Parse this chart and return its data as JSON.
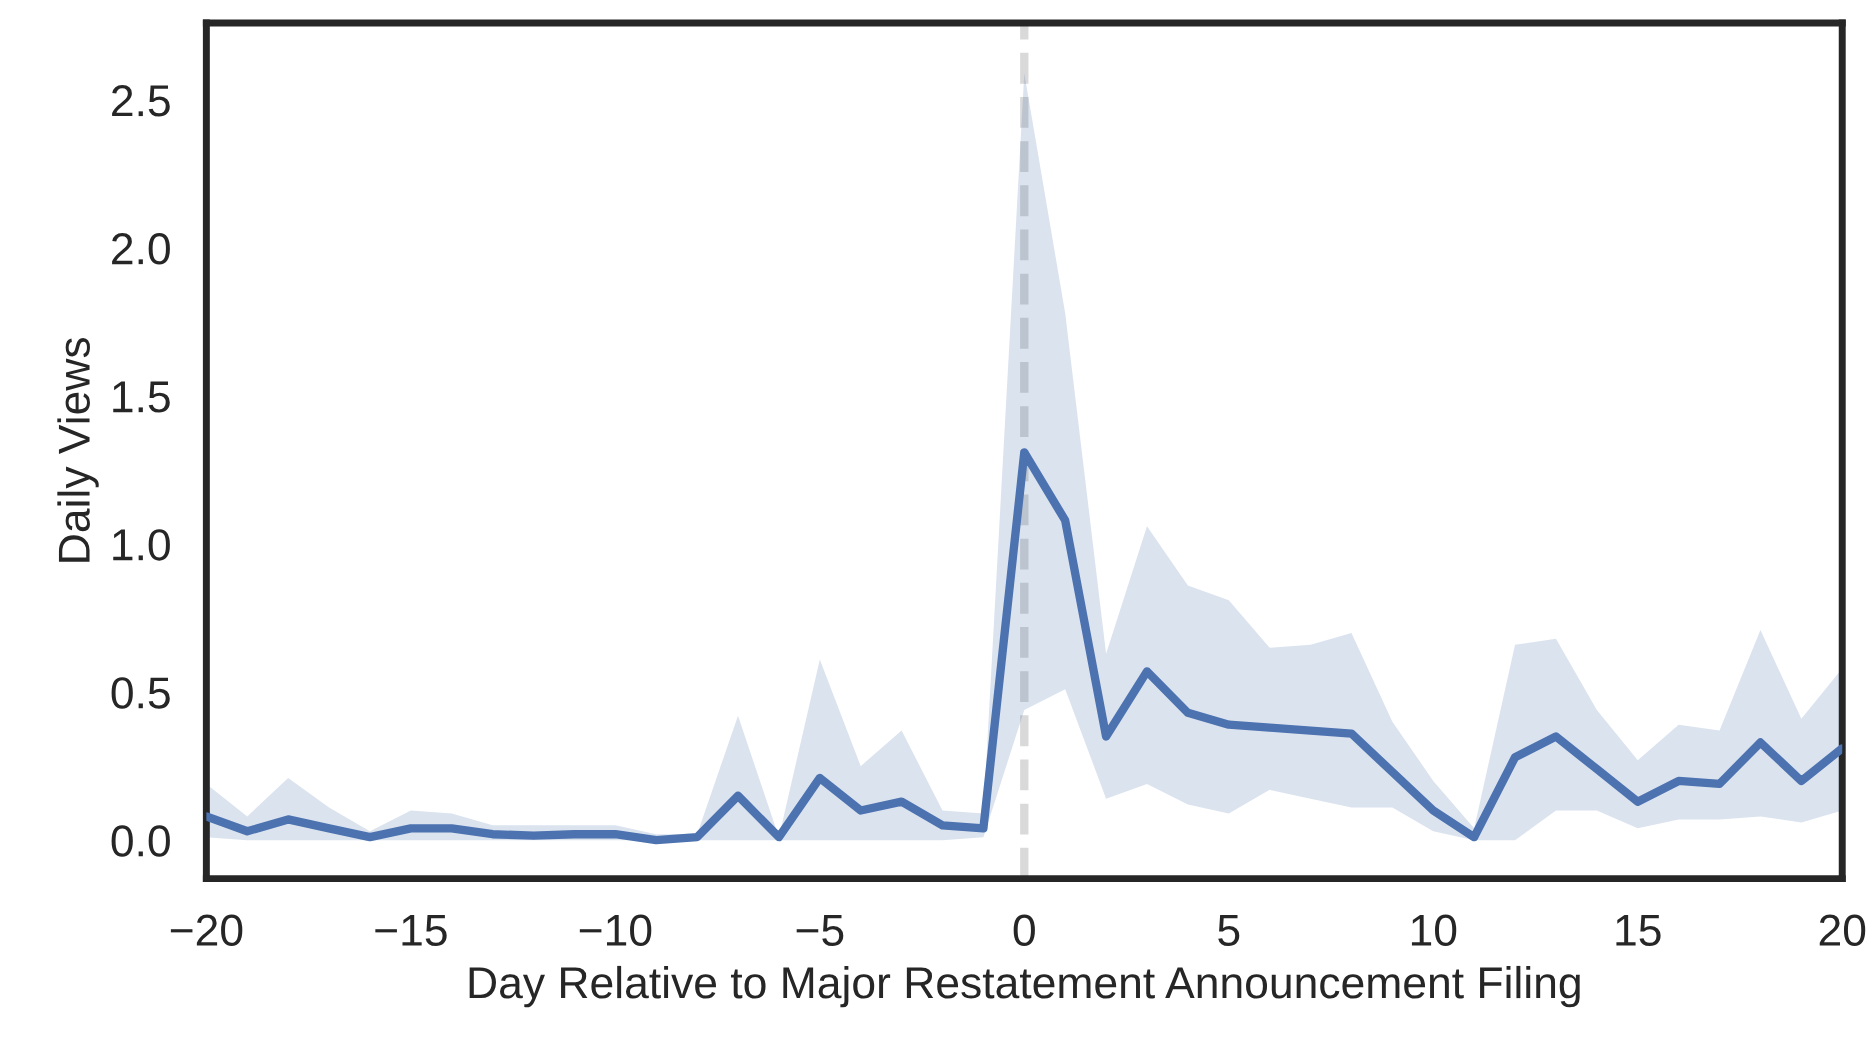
{
  "chart_data": {
    "type": "line",
    "xlabel": "Day Relative to Major Restatement Announcement Filing",
    "ylabel": "Daily Views",
    "x": [
      -20,
      -19,
      -18,
      -17,
      -16,
      -15,
      -14,
      -13,
      -12,
      -11,
      -10,
      -9,
      -8,
      -7,
      -6,
      -5,
      -4,
      -3,
      -2,
      -1,
      0,
      1,
      2,
      3,
      4,
      5,
      6,
      7,
      8,
      9,
      10,
      11,
      12,
      13,
      14,
      15,
      16,
      17,
      18,
      19,
      20
    ],
    "series": [
      {
        "color": "#4c72b0",
        "values": [
          0.08,
          0.03,
          0.07,
          0.04,
          0.01,
          0.04,
          0.04,
          0.02,
          0.015,
          0.02,
          0.02,
          0.0,
          0.01,
          0.15,
          0.01,
          0.21,
          0.1,
          0.13,
          0.05,
          0.04,
          1.31,
          1.08,
          0.35,
          0.57,
          0.43,
          0.39,
          0.38,
          0.37,
          0.36,
          0.23,
          0.1,
          0.01,
          0.28,
          0.35,
          0.24,
          0.13,
          0.2,
          0.19,
          0.33,
          0.2,
          0.31
        ],
        "upper": [
          0.19,
          0.08,
          0.21,
          0.11,
          0.03,
          0.1,
          0.09,
          0.05,
          0.05,
          0.05,
          0.05,
          0.02,
          0.02,
          0.42,
          0.01,
          0.61,
          0.25,
          0.37,
          0.1,
          0.09,
          2.59,
          1.78,
          0.63,
          1.06,
          0.86,
          0.81,
          0.65,
          0.66,
          0.7,
          0.4,
          0.2,
          0.04,
          0.66,
          0.68,
          0.44,
          0.27,
          0.39,
          0.37,
          0.71,
          0.41,
          0.58
        ],
        "lower": [
          0.01,
          0.0,
          0.0,
          0.0,
          0.0,
          0.0,
          0.0,
          0.0,
          0.0,
          0.0,
          0.0,
          0.0,
          0.0,
          0.0,
          0.0,
          0.0,
          0.0,
          0.0,
          0.0,
          0.01,
          0.44,
          0.51,
          0.14,
          0.19,
          0.12,
          0.09,
          0.17,
          0.14,
          0.11,
          0.11,
          0.03,
          0.0,
          0.0,
          0.1,
          0.1,
          0.04,
          0.07,
          0.07,
          0.08,
          0.06,
          0.1
        ]
      }
    ],
    "xlim": [
      -20,
      20
    ],
    "xticks": [
      {
        "value": -20,
        "label": "−20"
      },
      {
        "value": -15,
        "label": "−15"
      },
      {
        "value": -10,
        "label": "−10"
      },
      {
        "value": -5,
        "label": "−5"
      },
      0,
      5,
      10,
      15,
      20
    ],
    "ylim": [
      -0.13,
      2.76
    ],
    "yticks": [
      {
        "value": 0,
        "label": "0.0"
      },
      {
        "value": 0.5,
        "label": "0.5"
      },
      {
        "value": 1.0,
        "label": "1.0"
      },
      {
        "value": 1.5,
        "label": "1.5"
      },
      {
        "value": 2.0,
        "label": "2.0"
      },
      {
        "value": 2.5,
        "label": "2.5"
      }
    ],
    "ref_lines": [
      {
        "axis": "x",
        "value": 0,
        "color": "#d9d9d9",
        "line_style": "dashed"
      }
    ],
    "grid": false
  }
}
